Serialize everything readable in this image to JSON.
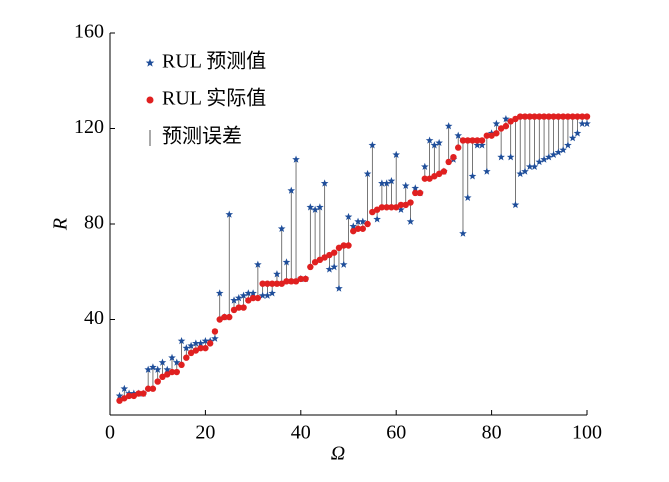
{
  "chart_data": {
    "type": "scatter",
    "xlabel": "Ω",
    "ylabel": "R",
    "x": [
      2,
      3,
      4,
      5,
      6,
      7,
      8,
      9,
      10,
      11,
      12,
      13,
      14,
      15,
      16,
      17,
      18,
      19,
      20,
      21,
      22,
      23,
      24,
      25,
      26,
      27,
      28,
      29,
      30,
      31,
      32,
      33,
      34,
      35,
      36,
      37,
      38,
      39,
      40,
      41,
      42,
      43,
      44,
      45,
      46,
      47,
      48,
      49,
      50,
      51,
      52,
      53,
      54,
      55,
      56,
      57,
      58,
      59,
      60,
      61,
      62,
      63,
      64,
      65,
      66,
      67,
      68,
      69,
      70,
      71,
      72,
      73,
      74,
      75,
      76,
      77,
      78,
      79,
      80,
      81,
      82,
      83,
      84,
      85,
      86,
      87,
      88,
      89,
      90,
      91,
      92,
      93,
      94,
      95,
      96,
      97,
      98,
      99,
      100
    ],
    "series": [
      {
        "name": "RUL 预测值",
        "color": "#1f4e9a",
        "marker": "star",
        "values": [
          8,
          11,
          9,
          9,
          9,
          9,
          19,
          20,
          19,
          22,
          19,
          24,
          22,
          31,
          28,
          29,
          30,
          30,
          31,
          31,
          32,
          51,
          41,
          84,
          48,
          49,
          50,
          51,
          51,
          63,
          50,
          50,
          51,
          59,
          78,
          64,
          94,
          107,
          57,
          57,
          87,
          86,
          87,
          97,
          61,
          62,
          53,
          63,
          83,
          79,
          81,
          81,
          101,
          113,
          82,
          97,
          97,
          98,
          109,
          86,
          96,
          81,
          95,
          93,
          104,
          115,
          113,
          114,
          102,
          121,
          107,
          117,
          76,
          91,
          100,
          113,
          113,
          102,
          118,
          122,
          108,
          124,
          108,
          88,
          101,
          102,
          104,
          104,
          106,
          107,
          108,
          109,
          110,
          111,
          113,
          116,
          118,
          122,
          122
        ]
      },
      {
        "name": "RUL 实际值",
        "color": "#e02020",
        "marker": "dot",
        "values": [
          6,
          7,
          8,
          8,
          9,
          9,
          11,
          11,
          14,
          16,
          17,
          18,
          18,
          21,
          24,
          26,
          27,
          28,
          28,
          30,
          35,
          40,
          41,
          41,
          44,
          45,
          45,
          48,
          49,
          49,
          55,
          55,
          55,
          55,
          55,
          56,
          56,
          56,
          57,
          57,
          62,
          64,
          65,
          66,
          67,
          68,
          70,
          71,
          71,
          77,
          78,
          78,
          80,
          85,
          86,
          87,
          87,
          87,
          87,
          88,
          88,
          89,
          93,
          93,
          99,
          99,
          100,
          101,
          102,
          106,
          108,
          112,
          115,
          115,
          115,
          115,
          115,
          117,
          117,
          118,
          120,
          121,
          123,
          124,
          125,
          125,
          125,
          125,
          125,
          125,
          125,
          125,
          125,
          125,
          125,
          125,
          125,
          125,
          125
        ]
      }
    ],
    "error_label": "预测误差",
    "error_color": "#555555",
    "xlim": [
      0,
      100
    ],
    "xticks": [
      0,
      20,
      40,
      60,
      80,
      100
    ],
    "ylim": [
      0,
      160
    ],
    "yticks": [
      40,
      80,
      120,
      160
    ]
  }
}
